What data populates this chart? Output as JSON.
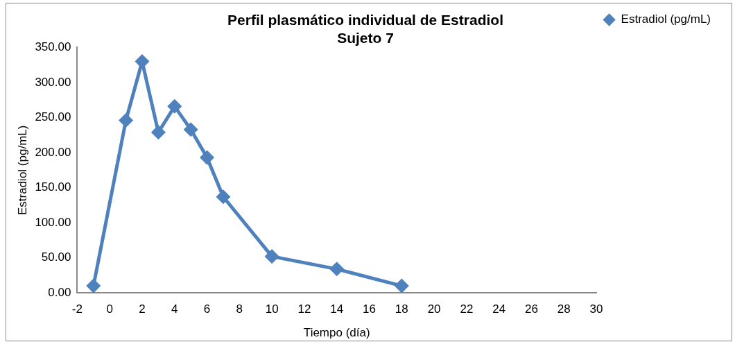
{
  "chart_data": {
    "type": "line",
    "title": "Perfil plasmático individual de Estradiol\nSujeto 7",
    "xlabel": "Tiempo (día)",
    "ylabel": "Estradiol (pg/mL)",
    "x": [
      -1,
      1,
      2,
      3,
      4,
      5,
      6,
      7,
      10,
      14,
      18
    ],
    "series": [
      {
        "name": "Estradiol (pg/mL)",
        "color": "#4f81bd",
        "values": [
          10,
          246,
          330,
          229,
          266,
          233,
          193,
          137,
          52,
          34,
          10
        ]
      }
    ],
    "xlim": [
      -2,
      30
    ],
    "xticks": [
      -2,
      0,
      2,
      4,
      6,
      8,
      10,
      12,
      14,
      16,
      18,
      20,
      22,
      24,
      26,
      28,
      30
    ],
    "ylim": [
      0,
      350
    ],
    "yticks": [
      {
        "value": 0,
        "label": "0.00"
      },
      {
        "value": 50,
        "label": "50.00"
      },
      {
        "value": 100,
        "label": "100.00"
      },
      {
        "value": 150,
        "label": "150.00"
      },
      {
        "value": 200,
        "label": "200.00"
      },
      {
        "value": 250,
        "label": "250.00"
      },
      {
        "value": 300,
        "label": "300.00"
      },
      {
        "value": 350,
        "label": "350.00"
      }
    ],
    "grid": false,
    "legend": "top right",
    "marker": "diamond",
    "line_style": "solid"
  }
}
